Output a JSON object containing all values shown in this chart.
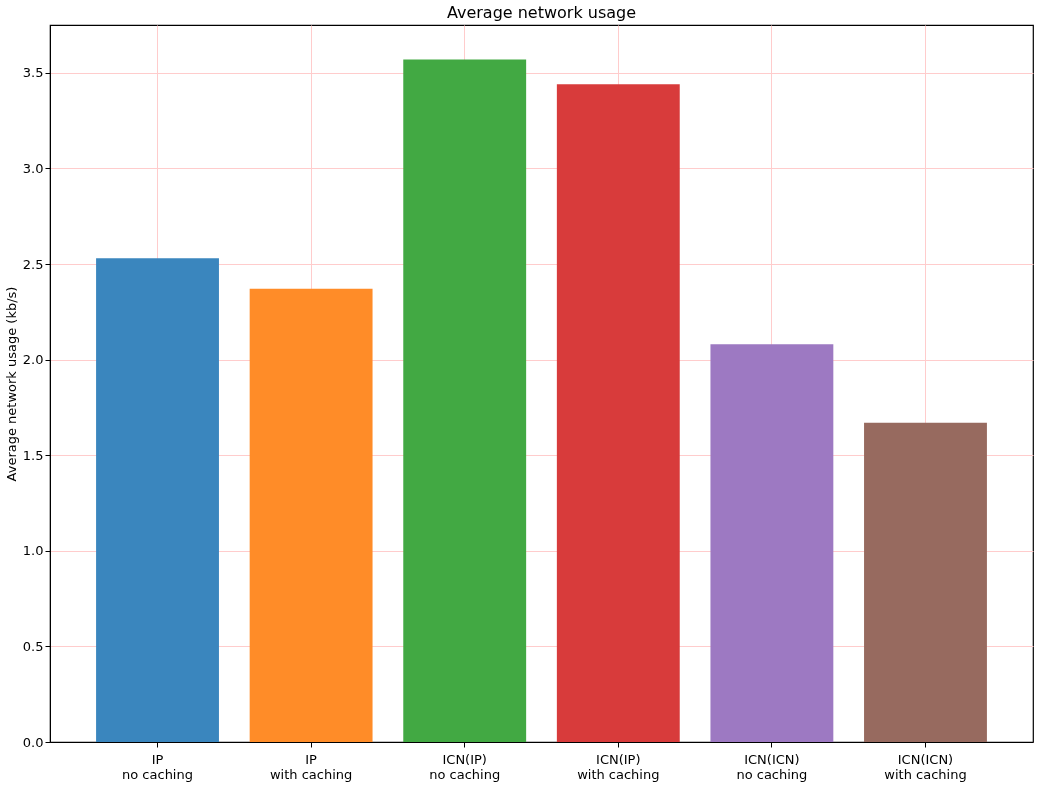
{
  "chart_data": {
    "type": "bar",
    "title": "Average network usage",
    "ylabel": "Average network usage (kb/s)",
    "categories": [
      "IP\nno caching",
      "IP\nwith caching",
      "ICN(IP)\nno caching",
      "ICN(IP)\nwith caching",
      "ICN(ICN)\nno caching",
      "ICN(ICN)\nwith caching"
    ],
    "values": [
      2.53,
      2.37,
      3.57,
      3.44,
      2.08,
      1.67
    ],
    "colors": [
      "#3a86be",
      "#ff8c28",
      "#42a943",
      "#d83b3b",
      "#9d79c2",
      "#976a5f"
    ],
    "ylim": [
      0,
      3.75
    ],
    "yticks": [
      {
        "value": 0,
        "label": "0.0"
      },
      0.5,
      {
        "value": 1,
        "label": "1.0"
      },
      1.5,
      {
        "value": 2,
        "label": "2.0"
      },
      2.5,
      {
        "value": 3,
        "label": "3.0"
      },
      3.5
    ],
    "grid": true
  }
}
